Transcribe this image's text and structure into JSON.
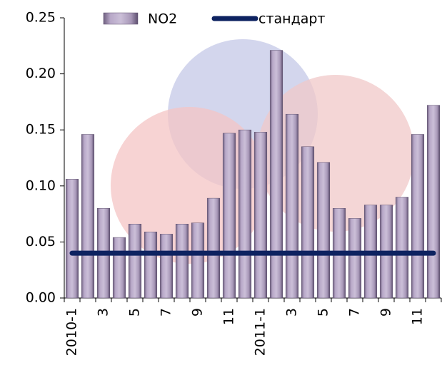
{
  "chart_data": {
    "type": "bar",
    "categories": [
      "2010-1",
      null,
      "3",
      null,
      "5",
      null,
      "7",
      null,
      "9",
      null,
      "11",
      null,
      "2011-1",
      null,
      "3",
      null,
      "5",
      null,
      "7",
      null,
      "9",
      null,
      "11",
      null
    ],
    "series": [
      {
        "name": "NO2",
        "type": "bar",
        "color": "#a898b8",
        "values": [
          0.106,
          0.146,
          0.08,
          0.054,
          0.066,
          0.059,
          0.057,
          0.066,
          0.067,
          0.089,
          0.147,
          0.15,
          0.148,
          0.221,
          0.164,
          0.135,
          0.121,
          0.08,
          0.071,
          0.083,
          0.083,
          0.09,
          0.146,
          0.172
        ]
      },
      {
        "name": "стандарт",
        "type": "line",
        "color": "#0d2260",
        "values": [
          0.04,
          0.04,
          0.04,
          0.04,
          0.04,
          0.04,
          0.04,
          0.04,
          0.04,
          0.04,
          0.04,
          0.04,
          0.04,
          0.04,
          0.04,
          0.04,
          0.04,
          0.04,
          0.04,
          0.04,
          0.04,
          0.04,
          0.04,
          0.04
        ]
      }
    ],
    "ylim": [
      0,
      0.25
    ],
    "yticks": [
      {
        "value": 0,
        "label": "0.00"
      },
      {
        "value": 0.05,
        "label": "0.05"
      },
      {
        "value": 0.1,
        "label": "0.10"
      },
      {
        "value": 0.15,
        "label": "0.15"
      },
      {
        "value": 0.2,
        "label": "0.20"
      },
      {
        "value": 0.25,
        "label": "0.25"
      }
    ]
  }
}
